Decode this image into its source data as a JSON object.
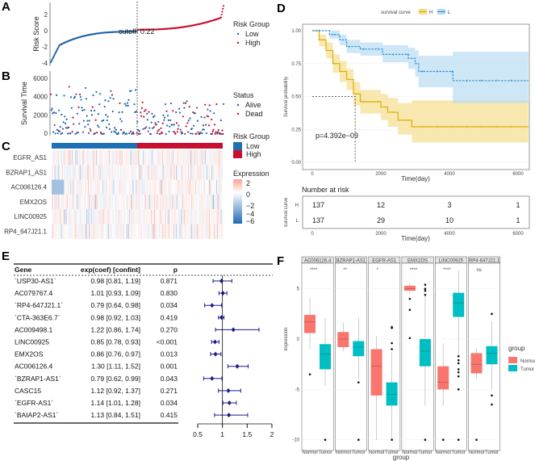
{
  "panel_labels": [
    "A",
    "B",
    "C",
    "D",
    "E",
    "F"
  ],
  "chart_data": [
    {
      "id": "A",
      "type": "scatter",
      "ylabel": "Risk Score",
      "yticks": [
        2,
        0,
        -2,
        -4
      ],
      "cutoff_label": "cutoff: 0.22",
      "cutoff": 0.22,
      "n_low": 137,
      "n_high": 137,
      "ylim": [
        -4,
        3.4
      ],
      "legend": {
        "title": "Risk Group",
        "entries": [
          {
            "name": "Low",
            "color": "#2166ac"
          },
          {
            "name": "High",
            "color": "#c8102e"
          }
        ],
        "placement": "right"
      }
    },
    {
      "id": "B",
      "type": "scatter",
      "ylabel": "Survival Time",
      "yticks": [
        6000,
        4000,
        2000,
        0
      ],
      "ylim": [
        0,
        6500
      ],
      "legend": {
        "title": "Status",
        "entries": [
          {
            "name": "Alive",
            "color": "#2166ac"
          },
          {
            "name": "Dead",
            "color": "#c8102e"
          }
        ],
        "placement": "right"
      }
    },
    {
      "id": "C",
      "type": "heatmap",
      "rows": [
        "EGFR_AS1",
        "BZRAP1_AS1",
        "AC006126.4",
        "EMX2OS",
        "LINC00925",
        "RP4_647J21.1"
      ],
      "group_legend": {
        "title": "Risk Group",
        "entries": [
          {
            "name": "Low",
            "color": "#1f6fb4"
          },
          {
            "name": "High",
            "color": "#c8102e"
          }
        ]
      },
      "color_legend": {
        "title": "Expression",
        "ticks": [
          "2",
          "0",
          "−2",
          "−4",
          "−6"
        ],
        "range": [
          -6,
          2.5
        ]
      }
    },
    {
      "id": "D",
      "type": "line",
      "title": "",
      "ylabel": "Survival probability",
      "xlabel": "Time(day)",
      "xticks": [
        0,
        2000,
        4000,
        6000
      ],
      "yticks": [
        "0.00",
        "0.25",
        "0.50",
        "0.75",
        "1.00"
      ],
      "xlim": [
        0,
        6300
      ],
      "ylim": [
        0,
        1
      ],
      "legend": {
        "title": "survival curve",
        "entries": [
          "H",
          "L"
        ],
        "placement": "top"
      },
      "pvalue_label": "p=4.392e−09",
      "median_H": 1250,
      "series": [
        {
          "name": "H",
          "color": "#e0ac00",
          "band": "#f5db85",
          "x": [
            0,
            200,
            400,
            600,
            800,
            1000,
            1200,
            1400,
            2000,
            2200,
            2500,
            2900,
            6300
          ],
          "y": [
            1,
            0.93,
            0.85,
            0.75,
            0.69,
            0.63,
            0.52,
            0.46,
            0.42,
            0.38,
            0.32,
            0.27,
            0.27
          ],
          "lower": [
            1,
            0.88,
            0.79,
            0.68,
            0.61,
            0.55,
            0.43,
            0.37,
            0.32,
            0.27,
            0.21,
            0.15,
            0.15
          ],
          "upper": [
            1,
            0.97,
            0.91,
            0.82,
            0.77,
            0.71,
            0.61,
            0.55,
            0.52,
            0.49,
            0.45,
            0.47,
            0.47
          ]
        },
        {
          "name": "L",
          "color": "#2f8fd6",
          "band": "#b3daf3",
          "x": [
            0,
            500,
            800,
            1000,
            1400,
            2050,
            2800,
            3000,
            3100,
            4100,
            6300
          ],
          "y": [
            1,
            0.97,
            0.93,
            0.88,
            0.86,
            0.82,
            0.79,
            0.75,
            0.69,
            0.62,
            0.62
          ],
          "lower": [
            1,
            0.94,
            0.89,
            0.83,
            0.81,
            0.76,
            0.71,
            0.65,
            0.57,
            0.45,
            0.45
          ],
          "upper": [
            1,
            1,
            0.97,
            0.93,
            0.91,
            0.89,
            0.87,
            0.85,
            0.81,
            0.84,
            0.84
          ]
        }
      ],
      "risk_table": {
        "title": "Number at risk",
        "ylabel": "survival curve",
        "xlabel": "Time(day)",
        "rows": [
          {
            "name": "H",
            "values": [
              137,
              12,
              3,
              1
            ]
          },
          {
            "name": "L",
            "values": [
              137,
              29,
              10,
              1
            ]
          }
        ]
      }
    },
    {
      "id": "E",
      "type": "table",
      "headers": [
        "Gene",
        "exp(coef) [confint]",
        "p"
      ],
      "xticks": [
        0.5,
        1,
        1.5,
        2
      ],
      "ref": 1,
      "rows": [
        {
          "gene": "`USP30-AS1`",
          "hr": 0.98,
          "lo": 0.81,
          "hi": 1.19,
          "text": "0.98 [0.81, 1.19]",
          "p": "0.871"
        },
        {
          "gene": "AC079767.4",
          "hr": 1.01,
          "lo": 0.93,
          "hi": 1.09,
          "text": "1.01 [0.93, 1.09]",
          "p": "0.830"
        },
        {
          "gene": "`RP4-647J21.1`",
          "hr": 0.79,
          "lo": 0.64,
          "hi": 0.98,
          "text": "0.79 [0.64, 0.98]",
          "p": "0.034"
        },
        {
          "gene": "`CTA-363E6.7`",
          "hr": 0.98,
          "lo": 0.92,
          "hi": 1.03,
          "text": "0.98 [0.92, 1.03]",
          "p": "0.419"
        },
        {
          "gene": "AC009498.1",
          "hr": 1.22,
          "lo": 0.86,
          "hi": 1.74,
          "text": "1.22 [0.86, 1.74]",
          "p": "0.270"
        },
        {
          "gene": "LINC00925",
          "hr": 0.85,
          "lo": 0.78,
          "hi": 0.93,
          "text": "0.85 [0.78, 0.93]",
          "p": "<0.001"
        },
        {
          "gene": "EMX2OS",
          "hr": 0.86,
          "lo": 0.76,
          "hi": 0.97,
          "text": "0.86 [0.76, 0.97]",
          "p": "0.013"
        },
        {
          "gene": "AC006126.4",
          "hr": 1.3,
          "lo": 1.11,
          "hi": 1.52,
          "text": "1.30 [1.11, 1.52]",
          "p": "0.001"
        },
        {
          "gene": "`BZRAP1-AS1`",
          "hr": 0.79,
          "lo": 0.62,
          "hi": 0.99,
          "text": "0.79 [0.62, 0.99]",
          "p": "0.043"
        },
        {
          "gene": "CASC15",
          "hr": 1.12,
          "lo": 0.92,
          "hi": 1.37,
          "text": "1.12 [0.92, 1.37]",
          "p": "0.271"
        },
        {
          "gene": "`EGFR-AS1`",
          "hr": 1.14,
          "lo": 1.01,
          "hi": 1.28,
          "text": "1.14 [1.01, 1.28]",
          "p": "0.034"
        },
        {
          "gene": "`BAIAP2-AS1`",
          "hr": 1.13,
          "lo": 0.84,
          "hi": 1.51,
          "text": "1.13 [0.84, 1.51]",
          "p": "0.415"
        }
      ]
    },
    {
      "id": "F",
      "type": "box",
      "ylabel": "expression",
      "xlabel": "group",
      "yticks": [
        5,
        0,
        -5,
        -10
      ],
      "ylim": [
        -10.8,
        7.5
      ],
      "groups": [
        "Normol",
        "Tumor"
      ],
      "colors": [
        "#f8766d",
        "#00bfc4"
      ],
      "legend": {
        "title": "group",
        "entries": [
          "Normol",
          "Tumor"
        ],
        "placement": "right"
      },
      "facets": [
        {
          "name": "AC006126.4",
          "sig": "****",
          "boxes": [
            {
              "q1": 0.6,
              "med": 1.7,
              "q3": 2.4,
              "lo": -1,
              "hi": 4.1,
              "out": [
                -3.5
              ]
            },
            {
              "q1": -3,
              "med": -1.5,
              "q3": -0.5,
              "lo": -4.6,
              "hi": 2.1,
              "out": [
                -10
              ]
            }
          ]
        },
        {
          "name": "BZRAP1-AS1",
          "sig": "**",
          "boxes": [
            {
              "q1": -0.8,
              "med": 0,
              "q3": 0.7,
              "lo": -1.2,
              "hi": 1.6,
              "out": []
            },
            {
              "q1": -1.7,
              "med": -0.8,
              "q3": -0.2,
              "lo": -4,
              "hi": 2.1,
              "out": [
                -4.3,
                -10
              ]
            }
          ]
        },
        {
          "name": "EGFR-AS1",
          "sig": "*",
          "boxes": [
            {
              "q1": -5.6,
              "med": -2.7,
              "q3": -1,
              "lo": -10,
              "hi": 0.3,
              "out": []
            },
            {
              "q1": -6.6,
              "med": -5.5,
              "q3": -4.3,
              "lo": -10,
              "hi": -1.3,
              "out": [
                1.2,
                1.1,
                -0.4,
                -1,
                -10
              ]
            }
          ]
        },
        {
          "name": "EMX2OS",
          "sig": "****",
          "boxes": [
            {
              "q1": 4.8,
              "med": 5.0,
              "q3": 5.3,
              "lo": 4.5,
              "hi": 5.6,
              "out": [
                4,
                2.9,
                0.1
              ]
            },
            {
              "q1": -2.7,
              "med": -1.2,
              "q3": 0,
              "lo": -6.6,
              "hi": 4.3,
              "out": [
                5.4,
                5,
                4.8,
                4.4,
                -10
              ]
            }
          ]
        },
        {
          "name": "LINC00925",
          "sig": "****",
          "boxes": [
            {
              "q1": -5,
              "med": -4.3,
              "q3": -2.7,
              "lo": -6.6,
              "hi": -0.4,
              "out": [
                -10
              ]
            },
            {
              "q1": 2.2,
              "med": 3.6,
              "q3": 4.6,
              "lo": -1.5,
              "hi": 6.8,
              "out": [
                -1.7,
                -2.1,
                -2.4,
                -3,
                -3.3,
                -3.7,
                -5,
                -10
              ]
            }
          ]
        },
        {
          "name": "RP4-647J21.1",
          "sig": "ns",
          "boxes": [
            {
              "q1": -3.4,
              "med": -2.5,
              "q3": -1.4,
              "lo": -3.9,
              "hi": -0.9,
              "out": [
                -10
              ]
            },
            {
              "q1": -2.5,
              "med": -1.4,
              "q3": -0.7,
              "lo": -5,
              "hi": 1.8,
              "out": [
                2.5,
                -5.6,
                -6.5
              ]
            }
          ]
        }
      ]
    }
  ]
}
